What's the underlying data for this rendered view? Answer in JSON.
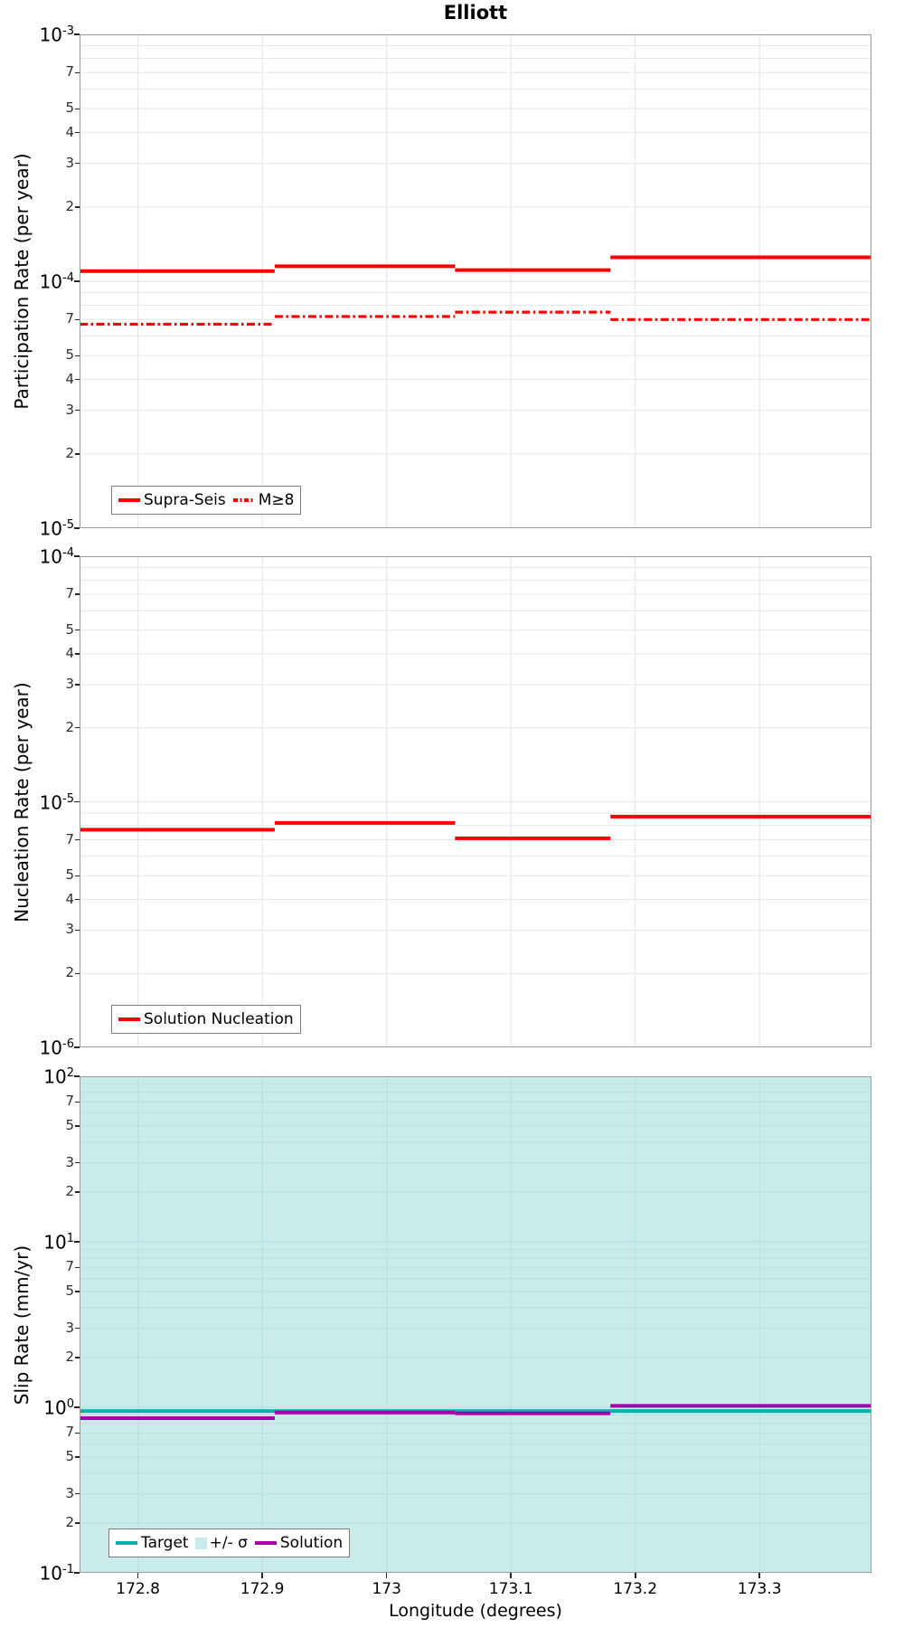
{
  "title": "Elliott",
  "x_axis": {
    "label": "Longitude (degrees)",
    "tick_labels": [
      "172.8",
      "172.9",
      "173",
      "173.1",
      "173.2",
      "173.3"
    ],
    "tick_values": [
      172.8,
      172.9,
      173.0,
      173.1,
      173.2,
      173.3
    ],
    "range": [
      172.753,
      173.39
    ]
  },
  "colors": {
    "series_red": "#ff0000",
    "target_teal": "#00b3ad",
    "solution_purple": "#a800a8",
    "sigma_band": "#c9eceb",
    "grid": "#e7e7e7",
    "grid_on_band": "#b5e2e1",
    "panel_border": "#9b9b9b"
  },
  "chart_data": [
    {
      "type": "line",
      "panel_id": "participation",
      "ylabel": "Participation Rate (per year)",
      "yscale": "log",
      "ylim": [
        1e-05,
        0.001
      ],
      "y_exponents": [
        -3,
        -4,
        -5
      ],
      "minor_tick_labels": [
        7,
        5,
        4,
        3,
        2
      ],
      "x_step_edges": [
        172.753,
        172.91,
        173.055,
        173.18,
        173.39
      ],
      "series": [
        {
          "id": "supra-seis",
          "name": "Supra-Seis",
          "style": "solid",
          "color": "#ff0000",
          "values": [
            0.00011,
            0.000115,
            0.000111,
            0.000125
          ]
        },
        {
          "id": "m-ge-8",
          "name": "M≥8",
          "style": "dashdot",
          "color": "#ff0000",
          "values": [
            6.7e-05,
            7.2e-05,
            7.5e-05,
            7e-05
          ]
        }
      ],
      "legend": [
        {
          "ref": "supra-seis",
          "label": "Supra-Seis",
          "swatch": "line-solid",
          "color": "#ff0000"
        },
        {
          "ref": "m-ge-8",
          "label": "M≥8",
          "swatch": "line-dashdot",
          "color": "#ff0000"
        }
      ]
    },
    {
      "type": "line",
      "panel_id": "nucleation",
      "ylabel": "Nucleation Rate (per year)",
      "yscale": "log",
      "ylim": [
        1e-06,
        0.0001
      ],
      "y_exponents": [
        -4,
        -5,
        -6
      ],
      "minor_tick_labels": [
        7,
        5,
        4,
        3,
        2
      ],
      "x_step_edges": [
        172.753,
        172.91,
        173.055,
        173.18,
        173.39
      ],
      "series": [
        {
          "id": "solution-nucleation",
          "name": "Solution Nucleation",
          "style": "solid",
          "color": "#ff0000",
          "values": [
            7.7e-06,
            8.2e-06,
            7.1e-06,
            8.7e-06
          ]
        }
      ],
      "legend": [
        {
          "ref": "solution-nucleation",
          "label": "Solution Nucleation",
          "swatch": "line-solid",
          "color": "#ff0000"
        }
      ]
    },
    {
      "type": "line",
      "panel_id": "slip-rate",
      "ylabel": "Slip Rate (mm/yr)",
      "yscale": "log",
      "ylim": [
        0.1,
        100
      ],
      "y_exponents": [
        2,
        1,
        0,
        -1
      ],
      "minor_tick_labels": [
        7,
        5,
        3,
        2
      ],
      "x_step_edges": [
        172.753,
        172.91,
        173.055,
        173.18,
        173.39
      ],
      "band": {
        "label": "+/- σ",
        "color": "#c9eceb",
        "covers_full_yrange": true
      },
      "series": [
        {
          "id": "target",
          "name": "Target",
          "style": "solid",
          "color": "#00b3ad",
          "values": [
            0.95,
            0.95,
            0.95,
            0.95
          ]
        },
        {
          "id": "solution",
          "name": "Solution",
          "style": "solid",
          "color": "#a800a8",
          "values": [
            0.86,
            0.93,
            0.92,
            1.02
          ]
        }
      ],
      "legend": [
        {
          "ref": "target",
          "label": "Target",
          "swatch": "line-solid",
          "color": "#00b3ad"
        },
        {
          "ref": "sigma-band",
          "label": "+/- σ",
          "swatch": "patch",
          "color": "#c9eceb"
        },
        {
          "ref": "solution",
          "label": "Solution",
          "swatch": "line-solid",
          "color": "#a800a8"
        }
      ]
    }
  ]
}
